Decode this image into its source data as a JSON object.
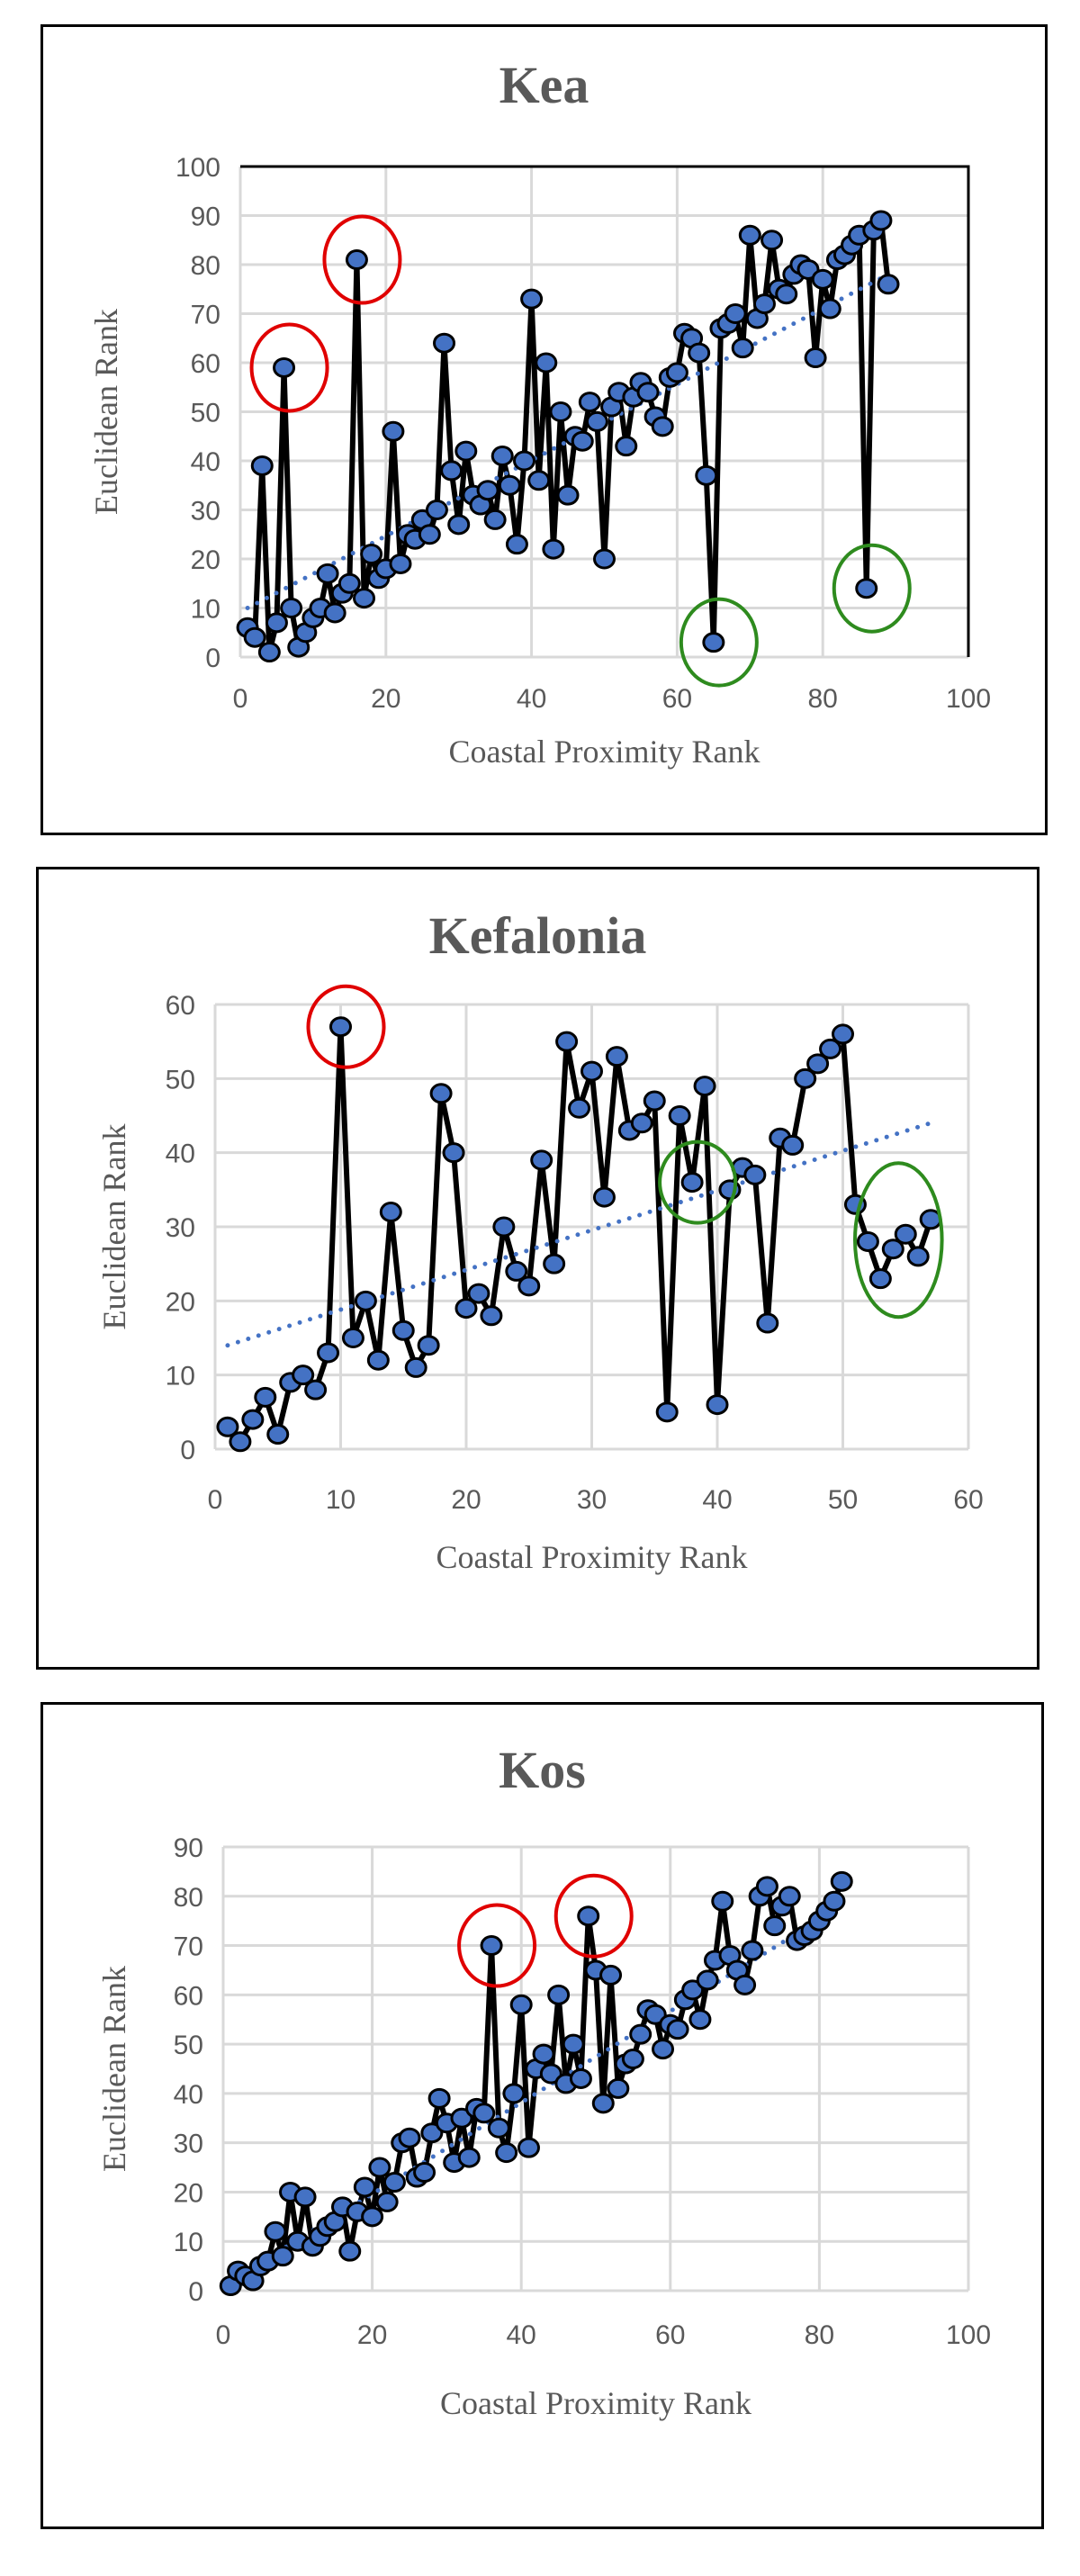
{
  "chart_data": [
    {
      "type": "line",
      "title": "Kea",
      "xlabel": "Coastal Proximity Rank",
      "ylabel": "Euclidean Rank",
      "xlim": [
        0,
        100
      ],
      "ylim": [
        0,
        100
      ],
      "xticks": [
        0,
        20,
        40,
        60,
        80,
        100
      ],
      "yticks": [
        0,
        10,
        20,
        30,
        40,
        50,
        60,
        70,
        80,
        90,
        100
      ],
      "grid": true,
      "line_color": "#000000",
      "marker_color": "#4472c4",
      "trend_color": "#4472c4",
      "trendline": {
        "type": "linear",
        "from": [
          1,
          10
        ],
        "to": [
          89,
          78
        ]
      },
      "y": [
        6,
        4,
        39,
        1,
        7,
        59,
        10,
        2,
        5,
        8,
        10,
        17,
        9,
        13,
        15,
        81,
        12,
        21,
        16,
        18,
        46,
        19,
        25,
        24,
        28,
        25,
        30,
        64,
        38,
        27,
        42,
        33,
        31,
        34,
        28,
        41,
        35,
        23,
        40,
        73,
        36,
        60,
        22,
        50,
        33,
        45,
        44,
        52,
        48,
        20,
        51,
        54,
        43,
        53,
        56,
        54,
        49,
        47,
        57,
        58,
        66,
        65,
        62,
        37,
        3,
        67,
        68,
        70,
        63,
        86,
        69,
        72,
        85,
        75,
        74,
        78,
        80,
        79,
        61,
        77,
        71,
        81,
        82,
        84,
        86,
        14,
        87,
        89,
        76
      ],
      "highlights": [
        {
          "x": 6,
          "color": "#e00000"
        },
        {
          "x": 16,
          "color": "#e00000"
        },
        {
          "x": 65,
          "color": "#2e8b1e"
        },
        {
          "x": 86,
          "color": "#2e8b1e"
        }
      ]
    },
    {
      "type": "line",
      "title": "Kefalonia",
      "xlabel": "Coastal Proximity Rank",
      "ylabel": "Euclidean Rank",
      "xlim": [
        0,
        60
      ],
      "ylim": [
        0,
        60
      ],
      "xticks": [
        0,
        10,
        20,
        30,
        40,
        50,
        60
      ],
      "yticks": [
        0,
        10,
        20,
        30,
        40,
        50,
        60
      ],
      "grid": true,
      "line_color": "#000000",
      "marker_color": "#4472c4",
      "trend_color": "#4472c4",
      "trendline": {
        "type": "linear",
        "from": [
          1,
          14
        ],
        "to": [
          57,
          44
        ]
      },
      "y": [
        3,
        1,
        4,
        7,
        2,
        9,
        10,
        8,
        13,
        57,
        15,
        20,
        12,
        32,
        16,
        11,
        14,
        48,
        40,
        19,
        21,
        18,
        30,
        24,
        22,
        39,
        25,
        55,
        46,
        51,
        34,
        53,
        43,
        44,
        47,
        5,
        45,
        36,
        49,
        6,
        35,
        38,
        37,
        17,
        42,
        41,
        50,
        52,
        54,
        56,
        33,
        28,
        23,
        27,
        29,
        26,
        31
      ],
      "highlights": [
        {
          "x": 10,
          "color": "#e00000"
        },
        {
          "x": 38,
          "color": "#2e8b1e"
        },
        {
          "x": 54,
          "color": "#2e8b1e"
        }
      ]
    },
    {
      "type": "line",
      "title": "Kos",
      "xlabel": "Coastal Proximity Rank",
      "ylabel": "Euclidean Rank",
      "xlim": [
        0,
        100
      ],
      "ylim": [
        0,
        90
      ],
      "xticks": [
        0,
        20,
        40,
        60,
        80,
        100
      ],
      "yticks": [
        0,
        10,
        20,
        30,
        40,
        50,
        60,
        70,
        80,
        90
      ],
      "grid": true,
      "line_color": "#000000",
      "marker_color": "#4472c4",
      "trend_color": "#4472c4",
      "trendline": {
        "type": "linear",
        "from": [
          1,
          2
        ],
        "to": [
          83,
          78
        ]
      },
      "y": [
        1,
        4,
        3,
        2,
        5,
        6,
        12,
        7,
        20,
        10,
        19,
        9,
        11,
        13,
        14,
        17,
        8,
        16,
        21,
        15,
        25,
        18,
        22,
        30,
        31,
        23,
        24,
        32,
        39,
        34,
        26,
        35,
        27,
        37,
        36,
        70,
        33,
        28,
        40,
        58,
        29,
        45,
        48,
        44,
        60,
        42,
        50,
        43,
        76,
        65,
        38,
        64,
        41,
        46,
        47,
        52,
        57,
        56,
        49,
        54,
        53,
        59,
        61,
        55,
        63,
        67,
        79,
        68,
        65,
        62,
        69,
        80,
        82,
        74,
        78,
        80,
        71,
        72,
        73,
        75,
        77,
        79,
        83
      ],
      "highlights": [
        {
          "x": 36,
          "color": "#e00000"
        },
        {
          "x": 49,
          "color": "#e00000"
        }
      ]
    }
  ]
}
